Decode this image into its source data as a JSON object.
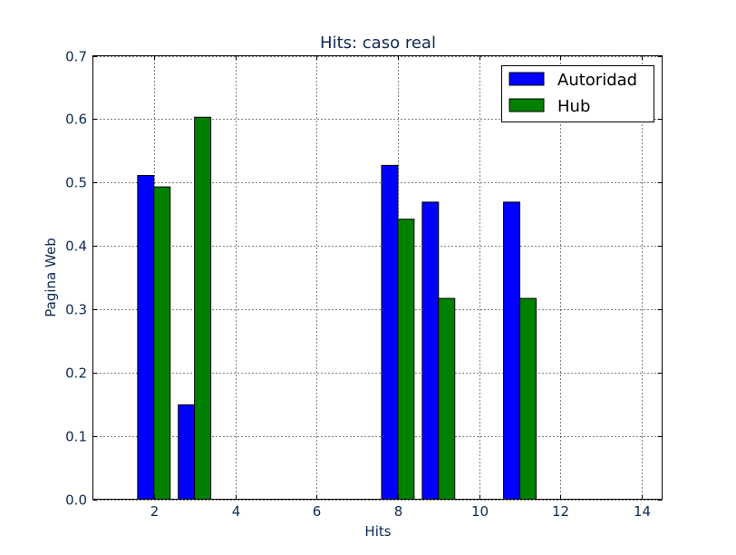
{
  "chart_data": {
    "type": "bar",
    "title": "Hits: caso real",
    "xlabel": "Hits",
    "ylabel": "Pagina Web",
    "xlim": [
      0.5,
      14.5
    ],
    "ylim": [
      0,
      0.7
    ],
    "xticks": [
      2,
      4,
      6,
      8,
      10,
      12,
      14
    ],
    "yticks": [
      0.0,
      0.1,
      0.2,
      0.3,
      0.4,
      0.5,
      0.6,
      0.7
    ],
    "grid": true,
    "legend_position": "top-right",
    "bar_width": 0.4,
    "x": [
      1,
      2,
      3,
      4,
      5,
      6,
      7,
      8,
      9,
      10,
      11,
      12,
      13,
      14
    ],
    "series": [
      {
        "name": "Autoridad",
        "color": "#0000ff",
        "values": [
          0,
          0.511,
          0.149,
          0,
          0,
          0,
          0,
          0.527,
          0.469,
          0,
          0.469,
          0,
          0,
          0
        ]
      },
      {
        "name": "Hub",
        "color": "#008000",
        "values": [
          0,
          0.493,
          0.603,
          0,
          0,
          0,
          0,
          0.442,
          0.317,
          0,
          0.317,
          0,
          0,
          0
        ]
      }
    ]
  }
}
